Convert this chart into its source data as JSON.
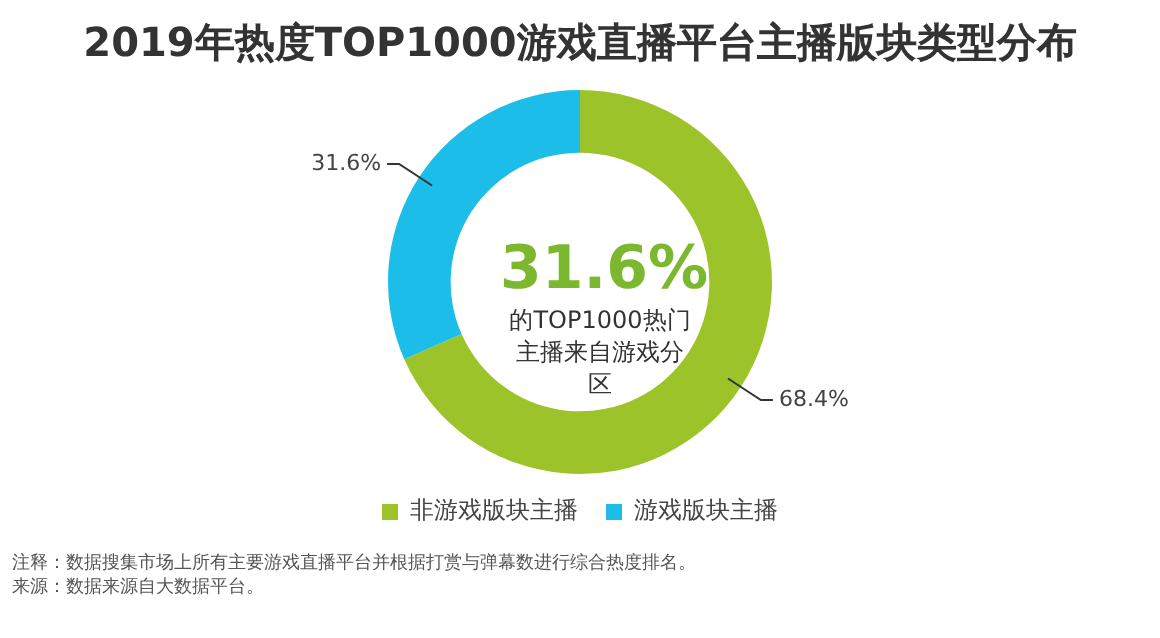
{
  "chart_data": {
    "type": "donut",
    "title": "2019年热度TOP1000游戏直播平台主播版块类型分布",
    "categories": [
      "非游戏版块主播",
      "游戏版块主播"
    ],
    "values": [
      68.4,
      31.6
    ],
    "colors": [
      "#9cc42a",
      "#1dbde9"
    ],
    "value_labels": [
      "68.4%",
      "31.6%"
    ],
    "legend": "bottom",
    "annotations": [
      "31.6%",
      "的TOP1000热门主播来自游戏分区",
      "注释：数据搜集市场上所有主要游戏直播平台并根据打赏与弹幕数进行综合热度排名。",
      "来源：数据来源自大数据平台。"
    ]
  }
}
